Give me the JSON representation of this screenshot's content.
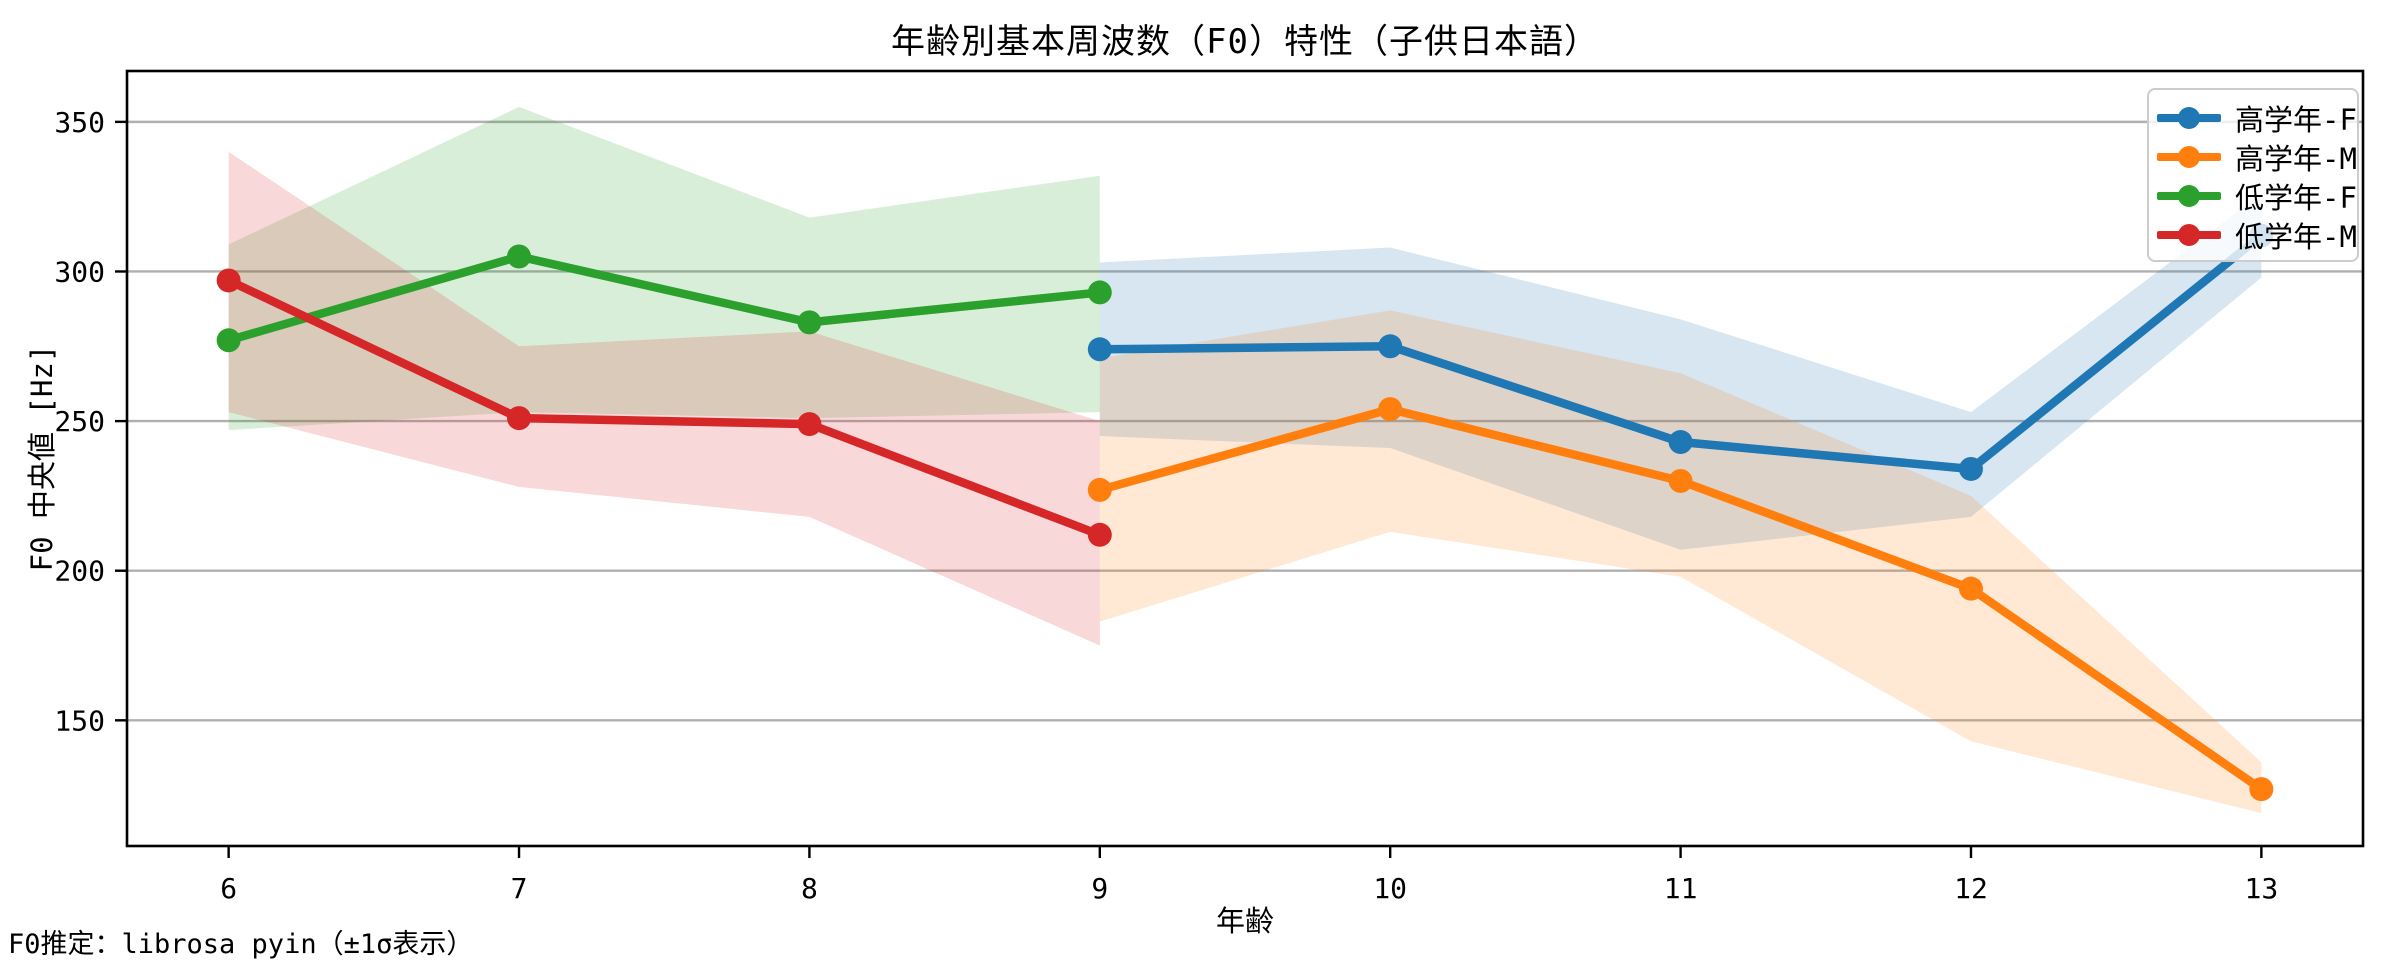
{
  "chart_data": {
    "type": "line",
    "title": "年齢別基本周波数（F0）特性（子供日本語）",
    "xlabel": "年齢",
    "ylabel": "F0 中央値 [Hz]",
    "footnote": "F0推定：librosa pyin（±1σ表示）",
    "band_meaning": "±1σ",
    "x_ticks": [
      6,
      7,
      8,
      9,
      10,
      11,
      12,
      13
    ],
    "y_ticks": [
      150,
      200,
      250,
      300,
      350
    ],
    "xlim": [
      5.65,
      13.35
    ],
    "ylim": [
      108,
      367
    ],
    "grid": true,
    "legend_position": "upper right",
    "colors": {
      "grid": "#b0b0b0",
      "spine": "#000000",
      "text": "#000000",
      "legend_border": "#cccccc"
    },
    "band_alpha": 0.18,
    "series": [
      {
        "name": "高学年-F",
        "color": "#1f77b4",
        "x": [
          9,
          10,
          11,
          12,
          13
        ],
        "values": [
          274,
          275,
          243,
          234,
          312
        ],
        "band_low": [
          245,
          241,
          207,
          218,
          298
        ],
        "band_high": [
          303,
          308,
          284,
          253,
          326
        ]
      },
      {
        "name": "高学年-M",
        "color": "#ff7f0e",
        "x": [
          9,
          10,
          11,
          12,
          13
        ],
        "values": [
          227,
          254,
          230,
          194,
          127
        ],
        "band_low": [
          183,
          213,
          198,
          143,
          119
        ],
        "band_high": [
          271,
          287,
          266,
          225,
          136
        ]
      },
      {
        "name": "低学年-F",
        "color": "#2ca02c",
        "x": [
          6,
          7,
          8,
          9
        ],
        "values": [
          277,
          305,
          283,
          293
        ],
        "band_low": [
          247,
          253,
          251,
          253
        ],
        "band_high": [
          309,
          355,
          318,
          332
        ]
      },
      {
        "name": "低学年-M",
        "color": "#d62728",
        "x": [
          6,
          7,
          8,
          9
        ],
        "values": [
          297,
          251,
          249,
          212
        ],
        "band_low": [
          253,
          228,
          218,
          175
        ],
        "band_high": [
          340,
          275,
          280,
          250
        ]
      }
    ]
  }
}
